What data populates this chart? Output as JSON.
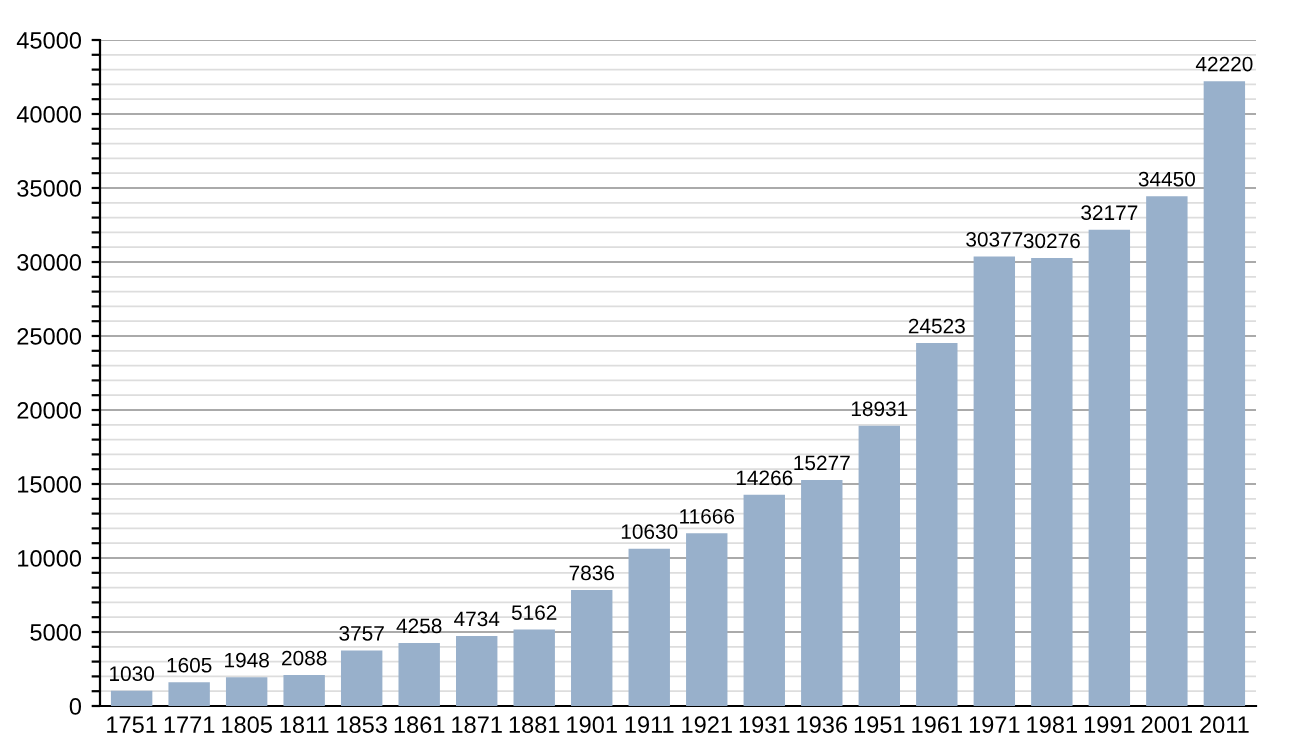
{
  "chart_data": {
    "type": "bar",
    "categories": [
      "1751",
      "1771",
      "1805",
      "1811",
      "1853",
      "1861",
      "1871",
      "1881",
      "1901",
      "1911",
      "1921",
      "1931",
      "1936",
      "1951",
      "1961",
      "1971",
      "1981",
      "1991",
      "2001",
      "2011"
    ],
    "values": [
      1030,
      1605,
      1948,
      2088,
      3757,
      4258,
      4734,
      5162,
      7836,
      10630,
      11666,
      14266,
      15277,
      18931,
      24523,
      30377,
      30276,
      32177,
      34450,
      42220
    ],
    "color": "#98b0cb",
    "ylim": [
      0,
      45000
    ],
    "yticks": [
      0,
      {
        "value": 1000,
        "label": null
      },
      {
        "value": 2000,
        "label": null
      },
      {
        "value": 3000,
        "label": null
      },
      {
        "value": 4000,
        "label": null
      },
      5000,
      {
        "value": 6000,
        "label": null
      },
      {
        "value": 7000,
        "label": null
      },
      {
        "value": 8000,
        "label": null
      },
      {
        "value": 9000,
        "label": null
      },
      10000,
      {
        "value": 11000,
        "label": null
      },
      {
        "value": 12000,
        "label": null
      },
      {
        "value": 13000,
        "label": null
      },
      {
        "value": 14000,
        "label": null
      },
      15000,
      {
        "value": 16000,
        "label": null
      },
      {
        "value": 17000,
        "label": null
      },
      {
        "value": 18000,
        "label": null
      },
      {
        "value": 19000,
        "label": null
      },
      20000,
      {
        "value": 21000,
        "label": null
      },
      {
        "value": 22000,
        "label": null
      },
      {
        "value": 23000,
        "label": null
      },
      {
        "value": 24000,
        "label": null
      },
      25000,
      {
        "value": 26000,
        "label": null
      },
      {
        "value": 27000,
        "label": null
      },
      {
        "value": 28000,
        "label": null
      },
      {
        "value": 29000,
        "label": null
      },
      30000,
      {
        "value": 31000,
        "label": null
      },
      {
        "value": 32000,
        "label": null
      },
      {
        "value": 33000,
        "label": null
      },
      {
        "value": 34000,
        "label": null
      },
      35000,
      {
        "value": 36000,
        "label": null
      },
      {
        "value": 37000,
        "label": null
      },
      {
        "value": 38000,
        "label": null
      },
      {
        "value": 39000,
        "label": null
      },
      40000,
      {
        "value": 41000,
        "label": null
      },
      {
        "value": 42000,
        "label": null
      },
      {
        "value": 43000,
        "label": null
      },
      {
        "value": 44000,
        "label": null
      },
      45000
    ],
    "grid": "y",
    "data_labels": true
  }
}
